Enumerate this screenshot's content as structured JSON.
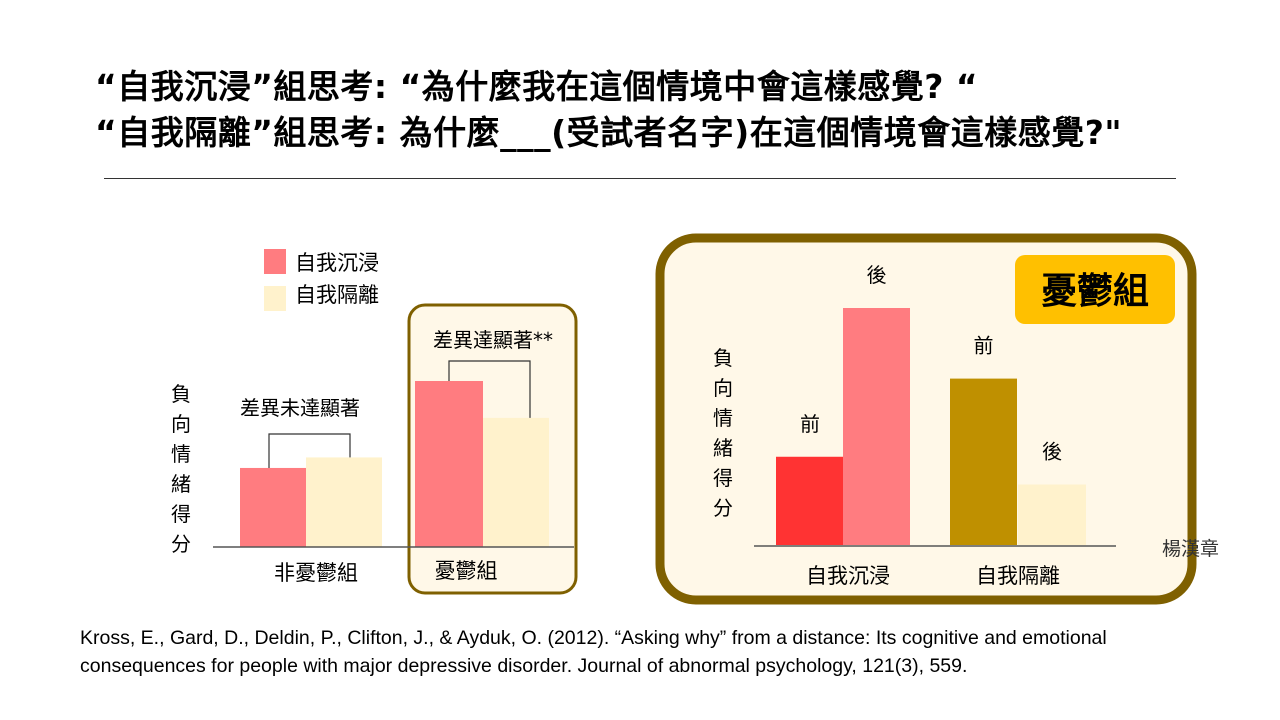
{
  "title": {
    "line1": "“自我沉浸”組思考: “為什麼我在這個情境中會這樣感覺? “",
    "line2": "“自我隔離”組思考: 為什麼___(受試者名字)在這個情境會這樣感覺?\""
  },
  "colors": {
    "immersed": "#ff7c80",
    "distanced": "#fff2cc",
    "pre_immersed": "#ff3333",
    "pre_distanced": "#bf9000",
    "frame": "#7f6000",
    "badge": "#ffc000"
  },
  "chart_data": [
    {
      "type": "bar",
      "ylabel": "負向情緒得分",
      "categories": [
        "非憂鬱組",
        "憂鬱組"
      ],
      "series": [
        {
          "name": "自我沉浸",
          "values": [
            30,
            63
          ]
        },
        {
          "name": "自我隔離",
          "values": [
            34,
            49
          ]
        }
      ],
      "ylim": [
        0,
        100
      ],
      "legend_position": "top-left",
      "annotations": [
        "差異未達顯著",
        "差異達顯著**"
      ]
    },
    {
      "type": "bar",
      "title": "憂鬱組",
      "ylabel": "負向情緒得分",
      "categories": [
        "自我沉浸",
        "自我隔離"
      ],
      "bars": [
        {
          "category": "自我沉浸",
          "label": "前",
          "value": 35
        },
        {
          "category": "自我沉浸",
          "label": "後",
          "value": 94
        },
        {
          "category": "自我隔離",
          "label": "前",
          "value": 66
        },
        {
          "category": "自我隔離",
          "label": "後",
          "value": 24
        }
      ],
      "ylim": [
        0,
        100
      ]
    }
  ],
  "credit": "楊漢章",
  "citation": "Kross, E., Gard, D., Deldin, P., Clifton, J., & Ayduk, O. (2012).  “Asking why”  from a distance: Its cognitive and emotional consequences for people with major depressive disorder. Journal of abnormal psychology, 121(3), 559."
}
